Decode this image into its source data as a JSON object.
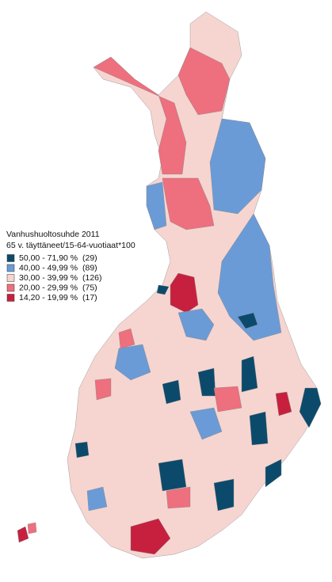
{
  "title": "Vanhushuoltosuhde 2011",
  "subtitle": "65 v. täyttäneet/15-64-vuotiaat*100",
  "legend": [
    {
      "label": "50,00 - 71,90 %",
      "count": "(29)",
      "color": "#0c4a6c"
    },
    {
      "label": "40,00 - 49,99 %",
      "count": "(89)",
      "color": "#6b9bd6"
    },
    {
      "label": "30,00 - 39,99 %",
      "count": "(126)",
      "color": "#f6d5d0"
    },
    {
      "label": "20,00 - 29,99 %",
      "count": "(75)",
      "color": "#ee6f7d"
    },
    {
      "label": "14,20 - 19,99 %",
      "count": "(17)",
      "color": "#c7203f"
    }
  ]
}
